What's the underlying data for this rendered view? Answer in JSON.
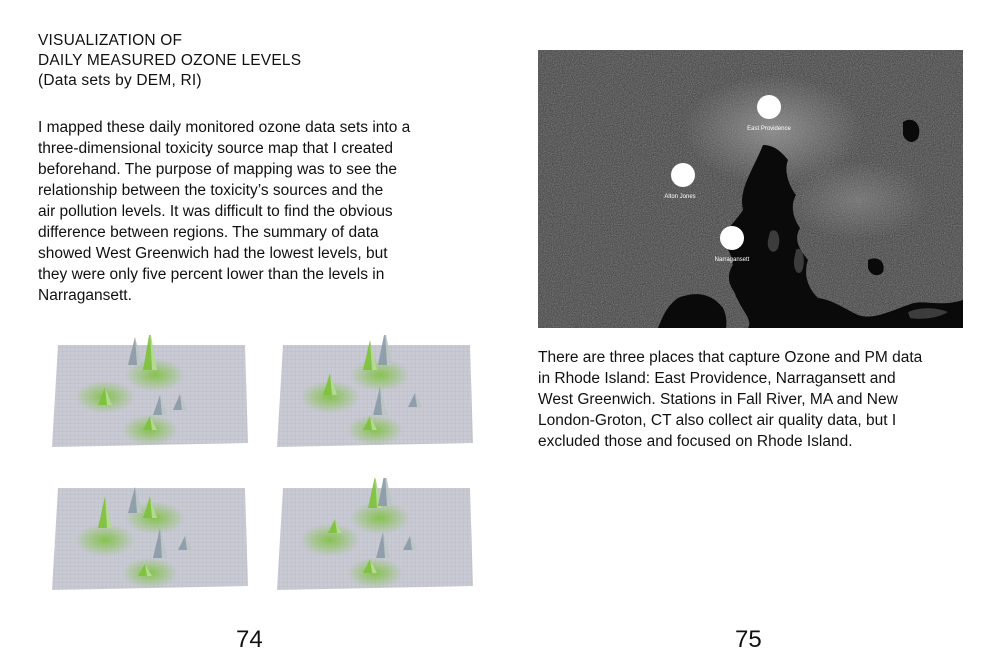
{
  "left_page": {
    "title_lines": [
      "VISUALIZATION OF",
      "DAILY MEASURED OZONE LEVELS",
      "(Data sets by DEM, RI)"
    ],
    "body_lines": [
      "I mapped these daily monitored ozone data sets into a",
      "three-dimensional toxicity source map that I created",
      "beforehand. The purpose of mapping was to see the",
      "relationship between the toxicity’s sources and the",
      "air pollution levels. It was difficult to find the obvious",
      "difference between regions. The summary of data",
      "showed West Greenwich had the lowest levels, but",
      "they were only five percent lower than the levels in",
      "Narragansett."
    ],
    "page_number": "74"
  },
  "right_page": {
    "map_labels": {
      "east_providence": "East Providence",
      "alton_jones": "Alton Jones",
      "narragansett": "Narragansett"
    },
    "body_lines": [
      "There are three places that capture Ozone and PM data",
      "in Rhode Island: East Providence, Narragansett and",
      "West Greenwich. Stations in Fall River, MA and New",
      "London-Groton, CT also collect air quality data, but I",
      "excluded those and focused on Rhode Island."
    ],
    "page_number": "75"
  },
  "colors": {
    "map_land": "#3a3a3a",
    "map_water": "#0a0a0a",
    "grid_plane": "#c9cad4",
    "peak_green": "#7cc23a",
    "peak_gray": "#8a9aa6"
  }
}
